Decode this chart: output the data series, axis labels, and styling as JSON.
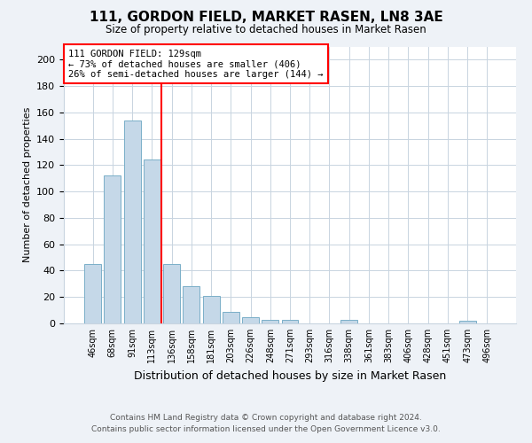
{
  "title": "111, GORDON FIELD, MARKET RASEN, LN8 3AE",
  "subtitle": "Size of property relative to detached houses in Market Rasen",
  "xlabel": "Distribution of detached houses by size in Market Rasen",
  "ylabel": "Number of detached properties",
  "categories": [
    "46sqm",
    "68sqm",
    "91sqm",
    "113sqm",
    "136sqm",
    "158sqm",
    "181sqm",
    "203sqm",
    "226sqm",
    "248sqm",
    "271sqm",
    "293sqm",
    "316sqm",
    "338sqm",
    "361sqm",
    "383sqm",
    "406sqm",
    "428sqm",
    "451sqm",
    "473sqm",
    "496sqm"
  ],
  "values": [
    45,
    112,
    154,
    124,
    45,
    28,
    21,
    9,
    5,
    3,
    3,
    0,
    0,
    3,
    0,
    0,
    0,
    0,
    0,
    2,
    0
  ],
  "bar_color": "#c5d8e8",
  "bar_edge_color": "#7aafc8",
  "vline_index": 4,
  "marker_label": "111 GORDON FIELD: 129sqm",
  "annotation_line1": "← 73% of detached houses are smaller (406)",
  "annotation_line2": "26% of semi-detached houses are larger (144) →",
  "vline_color": "red",
  "ylim": [
    0,
    210
  ],
  "yticks": [
    0,
    20,
    40,
    60,
    80,
    100,
    120,
    140,
    160,
    180,
    200
  ],
  "footer_line1": "Contains HM Land Registry data © Crown copyright and database right 2024.",
  "footer_line2": "Contains public sector information licensed under the Open Government Licence v3.0.",
  "background_color": "#eef2f7",
  "plot_background": "#ffffff"
}
